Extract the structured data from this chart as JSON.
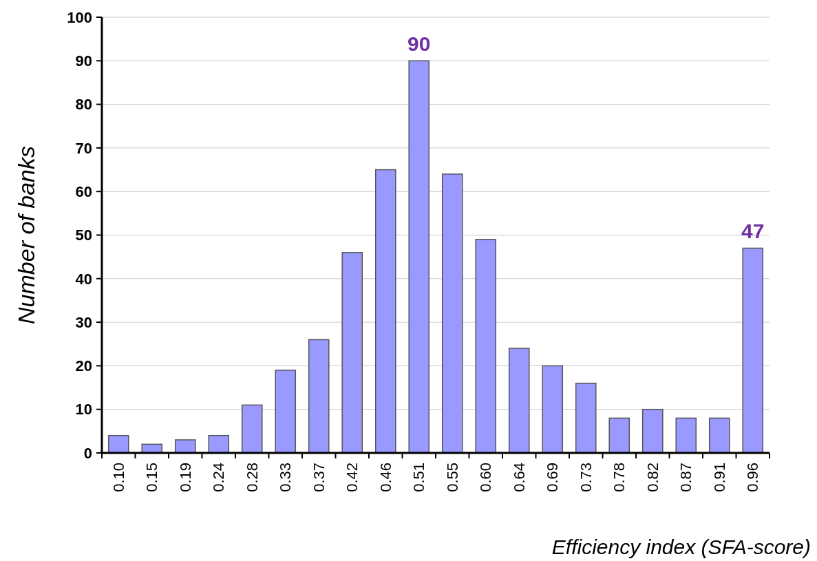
{
  "chart_data": {
    "type": "bar",
    "xlabel": "Efficiency index (SFA-score)",
    "ylabel": "Number of banks",
    "categories": [
      "0.10",
      "0.15",
      "0.19",
      "0.24",
      "0.28",
      "0.33",
      "0.37",
      "0.42",
      "0.46",
      "0.51",
      "0.55",
      "0.60",
      "0.64",
      "0.69",
      "0.73",
      "0.78",
      "0.82",
      "0.87",
      "0.91",
      "0.96"
    ],
    "series": [
      {
        "color": "#9999ff",
        "values": [
          4,
          2,
          3,
          4,
          11,
          19,
          26,
          46,
          65,
          90,
          64,
          49,
          24,
          20,
          16,
          8,
          10,
          8,
          8,
          47
        ],
        "value_labels": [
          null,
          null,
          null,
          null,
          null,
          null,
          null,
          null,
          null,
          "90",
          null,
          null,
          null,
          null,
          null,
          null,
          null,
          null,
          null,
          "47"
        ]
      }
    ],
    "ylim": [
      0,
      100
    ],
    "yticks": [
      0,
      10,
      20,
      30,
      40,
      50,
      60,
      70,
      80,
      90,
      100
    ],
    "grid": "y"
  }
}
